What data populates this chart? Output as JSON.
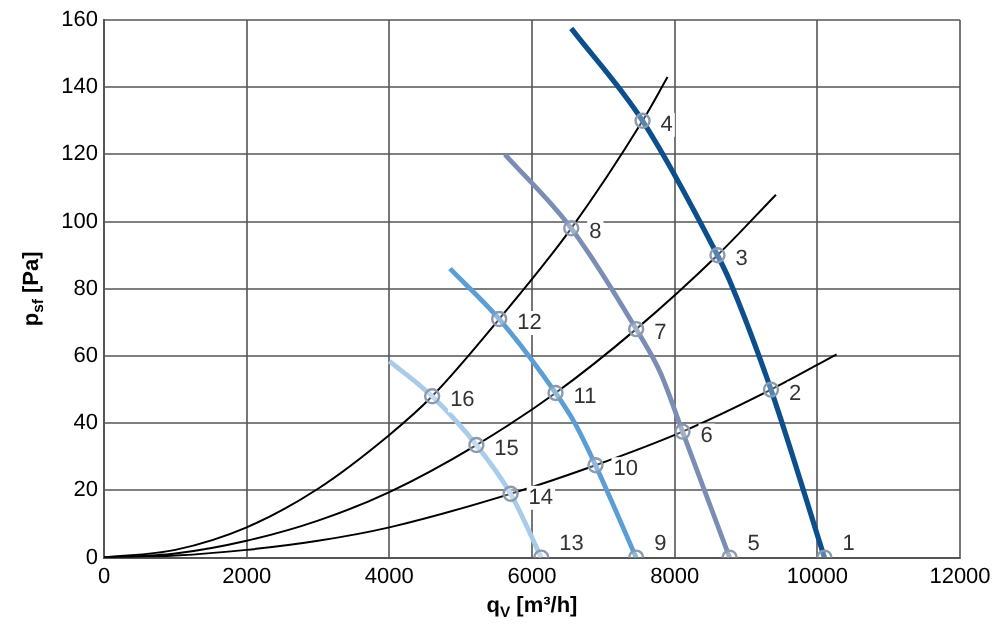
{
  "chart_data": {
    "type": "line",
    "xlabel": "q$_{V}$ [m³/h]",
    "ylabel": "p$_{sf}$ [Pa]",
    "xlim": [
      0,
      12000
    ],
    "xticks": [
      0,
      2000,
      4000,
      6000,
      8000,
      10000,
      12000
    ],
    "ylim": [
      0,
      160
    ],
    "yticks": [
      0,
      20,
      40,
      60,
      80,
      100,
      120,
      140,
      160
    ],
    "grid": true,
    "legend": false,
    "marker": "none",
    "series": [
      {
        "color": "#0d4f8c",
        "x": [
          6550,
          7550,
          8600,
          8770,
          9350,
          10100
        ],
        "values": [
          157.5,
          130,
          90,
          82.5,
          50,
          0
        ]
      },
      {
        "color": "#7a8db5",
        "x": [
          5620,
          6550,
          7460,
          7800,
          8110,
          8770
        ],
        "values": [
          120,
          98,
          68,
          55,
          37.5,
          0
        ]
      },
      {
        "color": "#5b9ed6",
        "x": [
          4850,
          5540,
          6330,
          6600,
          6890,
          7460
        ],
        "values": [
          86,
          71,
          49,
          40,
          27.5,
          0
        ]
      },
      {
        "color": "#a9cce9",
        "x": [
          4000,
          4600,
          5220,
          5700,
          6130
        ],
        "values": [
          58.5,
          48,
          33.5,
          19,
          0
        ]
      },
      {
        "color": "#000000",
        "x": [
          0,
          1000,
          2000,
          3000,
          4000,
          4600,
          5540,
          6550,
          7550,
          7900
        ],
        "values": [
          0,
          2.3,
          9,
          20.5,
          36.5,
          48,
          71,
          98,
          130,
          143
        ]
      },
      {
        "color": "#000000",
        "x": [
          0,
          1000,
          2000,
          3000,
          4000,
          5220,
          6330,
          7460,
          8600,
          9420
        ],
        "values": [
          0,
          1.2,
          5,
          11,
          19.5,
          33.5,
          49,
          68,
          90,
          108
        ]
      },
      {
        "color": "#000000",
        "x": [
          0,
          1000,
          2000,
          3000,
          4000,
          5700,
          6890,
          8110,
          9350,
          10270
        ],
        "values": [
          0,
          0.6,
          2.3,
          5,
          9,
          19,
          27.5,
          37.5,
          50,
          60.5
        ]
      },
      {
        "type": "scatter",
        "marker": "circle",
        "color": "#8a9bb0",
        "x": [
          10100,
          9350,
          8600,
          7550,
          8770,
          8110,
          7460,
          6550,
          7460,
          6890,
          6330,
          5540,
          6130,
          5700,
          5220,
          4600
        ],
        "values": [
          0,
          50,
          90,
          130,
          0,
          37.5,
          68,
          98,
          0,
          27.5,
          49,
          71,
          0,
          19,
          33.5,
          48
        ]
      }
    ],
    "annotations": [
      {
        "text": "1",
        "x": 10100,
        "y": 0
      },
      {
        "text": "2",
        "x": 9350,
        "y": 50
      },
      {
        "text": "3",
        "x": 8600,
        "y": 90
      },
      {
        "text": "4",
        "x": 7550,
        "y": 130
      },
      {
        "text": "5",
        "x": 8770,
        "y": 0
      },
      {
        "text": "6",
        "x": 8110,
        "y": 37.5
      },
      {
        "text": "7",
        "x": 7460,
        "y": 68
      },
      {
        "text": "8",
        "x": 6550,
        "y": 98
      },
      {
        "text": "9",
        "x": 7460,
        "y": 0
      },
      {
        "text": "10",
        "x": 6890,
        "y": 27.5
      },
      {
        "text": "11",
        "x": 6330,
        "y": 49
      },
      {
        "text": "12",
        "x": 5540,
        "y": 71
      },
      {
        "text": "13",
        "x": 6130,
        "y": 0
      },
      {
        "text": "14",
        "x": 5700,
        "y": 19
      },
      {
        "text": "15",
        "x": 5220,
        "y": 33.5
      },
      {
        "text": "16",
        "x": 4600,
        "y": 48
      }
    ]
  }
}
